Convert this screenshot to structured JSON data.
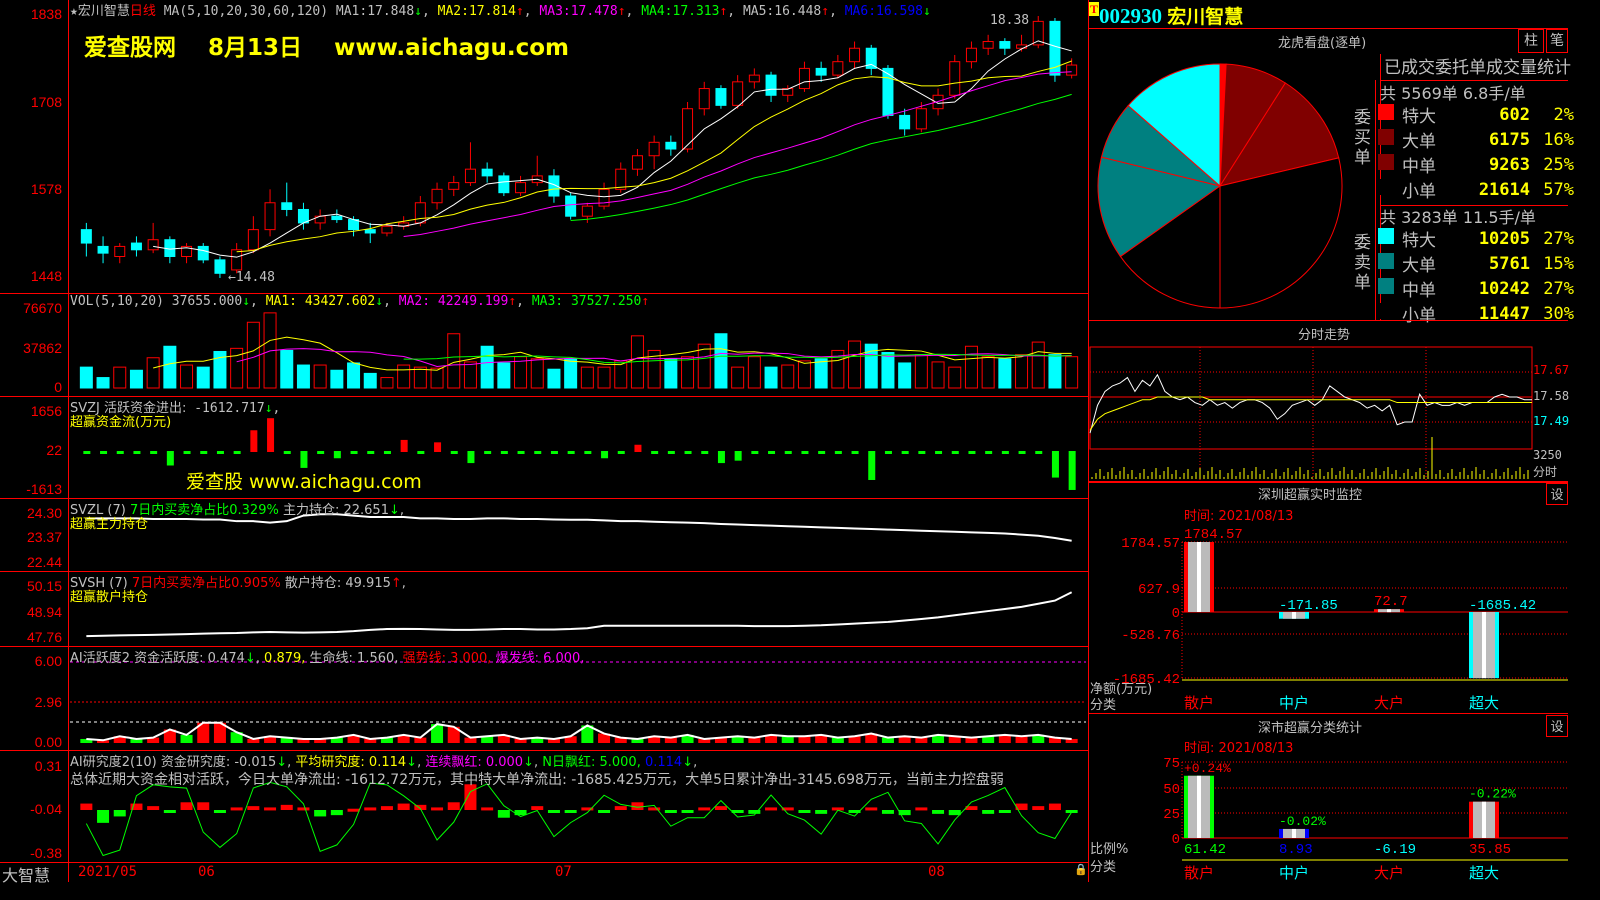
{
  "header": {
    "star": "★",
    "stock_name": "宏川智慧",
    "period": "日线",
    "ma_label": "MA(5,10,20,30,60,120)",
    "ma": [
      {
        "k": "MA1:",
        "v": "17.848",
        "arrow": "↓"
      },
      {
        "k": "MA2:",
        "v": "17.814",
        "arrow": "↑"
      },
      {
        "k": "MA3:",
        "v": "17.478",
        "arrow": "↑"
      },
      {
        "k": "MA4:",
        "v": "17.313",
        "arrow": "↑"
      },
      {
        "k": "MA5:",
        "v": "16.448",
        "arrow": "↑"
      },
      {
        "k": "MA6:",
        "v": "16.598",
        "arrow": "↓"
      }
    ],
    "watermark": "爱查股网    8月13日    www.aichagu.com",
    "high_label": "18.38",
    "low_label": "←14.48"
  },
  "price_axis": [
    "1838",
    "1708",
    "1578",
    "1448"
  ],
  "candles": [
    [
      15.2,
      15.3,
      14.8,
      15.0
    ],
    [
      14.95,
      15.1,
      14.7,
      14.85
    ],
    [
      14.8,
      15.0,
      14.7,
      14.95
    ],
    [
      15.0,
      15.1,
      14.8,
      14.9
    ],
    [
      14.9,
      15.3,
      14.85,
      15.05
    ],
    [
      15.05,
      15.1,
      14.7,
      14.8
    ],
    [
      14.8,
      15.0,
      14.7,
      14.95
    ],
    [
      14.95,
      15.0,
      14.7,
      14.75
    ],
    [
      14.75,
      14.8,
      14.48,
      14.55
    ],
    [
      14.6,
      15.0,
      14.55,
      14.9
    ],
    [
      14.9,
      15.4,
      14.85,
      15.2
    ],
    [
      15.2,
      15.8,
      15.1,
      15.6
    ],
    [
      15.6,
      15.9,
      15.4,
      15.5
    ],
    [
      15.5,
      15.6,
      15.2,
      15.3
    ],
    [
      15.3,
      15.5,
      15.2,
      15.4
    ],
    [
      15.4,
      15.5,
      15.3,
      15.35
    ],
    [
      15.35,
      15.4,
      15.1,
      15.2
    ],
    [
      15.2,
      15.3,
      15.0,
      15.15
    ],
    [
      15.15,
      15.3,
      15.1,
      15.25
    ],
    [
      15.25,
      15.4,
      15.2,
      15.3
    ],
    [
      15.3,
      15.7,
      15.25,
      15.6
    ],
    [
      15.6,
      15.9,
      15.5,
      15.8
    ],
    [
      15.8,
      16.0,
      15.7,
      15.9
    ],
    [
      15.9,
      16.5,
      15.85,
      16.1
    ],
    [
      16.1,
      16.2,
      15.9,
      16.0
    ],
    [
      16.0,
      16.05,
      15.7,
      15.75
    ],
    [
      15.75,
      16.0,
      15.7,
      15.9
    ],
    [
      15.9,
      16.3,
      15.85,
      16.0
    ],
    [
      16.0,
      16.1,
      15.6,
      15.7
    ],
    [
      15.7,
      15.75,
      15.35,
      15.4
    ],
    [
      15.4,
      15.6,
      15.3,
      15.55
    ],
    [
      15.55,
      15.9,
      15.5,
      15.8
    ],
    [
      15.8,
      16.2,
      15.75,
      16.1
    ],
    [
      16.1,
      16.4,
      16.0,
      16.3
    ],
    [
      16.3,
      16.6,
      16.1,
      16.5
    ],
    [
      16.5,
      16.6,
      16.3,
      16.4
    ],
    [
      16.4,
      17.1,
      16.35,
      17.0
    ],
    [
      17.0,
      17.4,
      16.9,
      17.3
    ],
    [
      17.3,
      17.35,
      17.0,
      17.05
    ],
    [
      17.05,
      17.5,
      17.0,
      17.4
    ],
    [
      17.4,
      17.6,
      17.3,
      17.5
    ],
    [
      17.5,
      17.55,
      17.1,
      17.2
    ],
    [
      17.2,
      17.35,
      17.1,
      17.3
    ],
    [
      17.3,
      17.7,
      17.25,
      17.6
    ],
    [
      17.6,
      17.7,
      17.4,
      17.5
    ],
    [
      17.5,
      17.8,
      17.45,
      17.7
    ],
    [
      17.7,
      18.0,
      17.6,
      17.9
    ],
    [
      17.9,
      17.95,
      17.5,
      17.6
    ],
    [
      17.6,
      17.65,
      16.85,
      16.9
    ],
    [
      16.9,
      17.0,
      16.6,
      16.7
    ],
    [
      16.7,
      17.1,
      16.65,
      17.0
    ],
    [
      17.0,
      17.3,
      16.9,
      17.2
    ],
    [
      17.2,
      17.8,
      17.15,
      17.7
    ],
    [
      17.7,
      18.0,
      17.6,
      17.9
    ],
    [
      17.9,
      18.1,
      17.8,
      18.0
    ],
    [
      18.0,
      18.05,
      17.8,
      17.9
    ],
    [
      17.9,
      18.1,
      17.85,
      17.95
    ],
    [
      17.95,
      18.38,
      17.9,
      18.3
    ],
    [
      18.3,
      18.35,
      17.4,
      17.5
    ],
    [
      17.5,
      17.75,
      17.45,
      17.65
    ]
  ],
  "volume": {
    "label": "VOL(5,10,20)",
    "value": "37655.000",
    "arrow1": "↓",
    "ma1": "MA1: 43427.602",
    "a1": "↓",
    "ma2": "MA2: 42249.199",
    "a2": "↑",
    "ma3": "MA3: 37527.250",
    "a3": "↑",
    "axis": [
      "76670",
      "37862",
      "0"
    ],
    "values": [
      20000,
      10000,
      20000,
      17000,
      29000,
      40000,
      22000,
      20000,
      35000,
      38000,
      63000,
      72000,
      36000,
      22000,
      22000,
      17000,
      24000,
      14000,
      10000,
      22000,
      20000,
      19000,
      52000,
      25000,
      40000,
      24000,
      30000,
      28000,
      18000,
      28000,
      20000,
      20000,
      26000,
      50000,
      36000,
      28000,
      30000,
      42000,
      52000,
      20000,
      30000,
      20000,
      22000,
      26000,
      28000,
      36000,
      45000,
      42000,
      34000,
      24000,
      32000,
      25000,
      20000,
      40000,
      30000,
      28000,
      32000,
      44000,
      32000,
      30000
    ]
  },
  "svzj": {
    "label": "SVZJ  活跃资金进出:",
    "value": "-1612.717",
    "arrow": "↓",
    "sub": "超赢资金流(万元)",
    "axis": [
      "1656",
      "22",
      "-1613"
    ],
    "watermark": "爱查股 www.aichagu.com",
    "values": [
      -30,
      -40,
      -60,
      -60,
      -80,
      -600,
      -40,
      -60,
      -40,
      -40,
      900,
      1400,
      -40,
      -700,
      -60,
      -300,
      -80,
      -60,
      -40,
      500,
      -40,
      400,
      -60,
      -500,
      -60,
      -60,
      -40,
      -60,
      -60,
      -60,
      -40,
      -300,
      -40,
      300,
      -40,
      -60,
      -60,
      -80,
      -500,
      -400,
      -60,
      -60,
      -60,
      -40,
      -60,
      -60,
      -60,
      -1200,
      -60,
      -60,
      -40,
      -60,
      -60,
      -60,
      -40,
      -60,
      -60,
      -60,
      -1100,
      -1613
    ]
  },
  "svzl": {
    "label": "SVZL (7)",
    "ratio": "7日内买卖净占比0.329%",
    "hold": "主力持仓: 22.651",
    "arrow": "↓",
    "sub": "超赢主力持仓",
    "axis": [
      "24.30",
      "23.37",
      "22.44"
    ],
    "values": [
      24.0,
      24.0,
      24.0,
      24.0,
      23.98,
      23.98,
      23.98,
      23.96,
      23.96,
      23.9,
      23.9,
      23.85,
      23.9,
      24.1,
      24.15,
      24.15,
      24.1,
      24.05,
      24.05,
      24.05,
      24.0,
      24.0,
      23.98,
      23.98,
      24.0,
      24.0,
      23.98,
      23.98,
      23.96,
      23.95,
      23.95,
      23.93,
      23.9,
      23.9,
      23.88,
      23.86,
      23.85,
      23.83,
      23.8,
      23.78,
      23.76,
      23.74,
      23.72,
      23.7,
      23.68,
      23.66,
      23.64,
      23.62,
      23.6,
      23.58,
      23.56,
      23.54,
      23.52,
      23.5,
      23.48,
      23.46,
      23.42,
      23.38,
      23.3,
      23.2
    ]
  },
  "svsh": {
    "label": "SVSH (7)",
    "ratio": "7日内买卖净占比0.905%",
    "hold": "散户持仓: 49.915",
    "arrow": "↑",
    "sub": "超赢散户持仓",
    "axis": [
      "50.15",
      "48.94",
      "47.76"
    ],
    "values": [
      47.8,
      47.82,
      47.84,
      47.85,
      47.86,
      47.88,
      47.9,
      47.92,
      47.94,
      47.95,
      47.98,
      48.0,
      47.98,
      47.97,
      47.98,
      48.0,
      48.04,
      48.1,
      48.14,
      48.15,
      48.14,
      48.12,
      48.1,
      48.1,
      48.12,
      48.14,
      48.14,
      48.12,
      48.12,
      48.14,
      48.18,
      48.3,
      48.3,
      48.3,
      48.3,
      48.3,
      48.3,
      48.3,
      48.3,
      48.3,
      48.28,
      48.28,
      48.28,
      48.3,
      48.32,
      48.36,
      48.4,
      48.44,
      48.48,
      48.55,
      48.62,
      48.7,
      48.8,
      48.9,
      49.0,
      49.1,
      49.2,
      49.35,
      49.5,
      49.9
    ]
  },
  "ai_active": {
    "label": "AI活跃度2",
    "v1": "资金活跃度: 0.474",
    "a1": "↓",
    "v2": "0.879,",
    "v3": "生命线: 1.560,",
    "v4": "强势线: 3.000,",
    "v5": "爆发线: 6.000,",
    "axis": [
      "6.00",
      "2.96",
      "0.00"
    ],
    "values": [
      0.3,
      0.2,
      0.5,
      0.3,
      0.4,
      1.0,
      0.6,
      1.5,
      1.5,
      0.8,
      0.3,
      0.5,
      0.4,
      0.3,
      0.3,
      0.4,
      0.6,
      0.3,
      0.4,
      0.6,
      0.4,
      1.4,
      1.2,
      0.4,
      0.5,
      0.6,
      0.3,
      0.4,
      0.3,
      0.5,
      1.3,
      0.7,
      0.4,
      0.3,
      0.5,
      0.4,
      0.6,
      0.3,
      0.4,
      0.5,
      0.4,
      0.6,
      0.5,
      0.5,
      0.6,
      0.4,
      0.5,
      0.7,
      0.4,
      0.5,
      0.4,
      0.6,
      0.5,
      0.4,
      0.5,
      0.6,
      0.5,
      0.6,
      0.4,
      0.3
    ]
  },
  "ai_research": {
    "label": "AI研究度2(10)",
    "v1": "资金研究度: -0.015",
    "a1": "↓",
    "v2": "平均研究度: 0.114",
    "a2": "↓",
    "v3": "连续飘红: 0.000",
    "a3": "↓",
    "v4": "N日飘红: 5.000,",
    "v5": "0.114",
    "a5": "↓",
    "summary": "总体近期大资金相对活跃，今日大单净流出: -1612.72万元，其中特大单净流出: -1685.425万元，大单5日累计净出-3145.698万元，当前主力控盘弱",
    "axis": [
      "0.31",
      "-0.04",
      "-0.38"
    ],
    "values": [
      0.05,
      -0.1,
      -0.05,
      0.05,
      0.03,
      -0.01,
      0.06,
      0.06,
      -0.02,
      0.02,
      0.03,
      0.02,
      0.04,
      0.02,
      -0.05,
      -0.04,
      0.01,
      0.02,
      0.03,
      0.05,
      0.04,
      0.02,
      0.06,
      0.2,
      0.02,
      -0.06,
      -0.04,
      0.03,
      -0.02,
      -0.02,
      0.02,
      -0.01,
      0.03,
      0.06,
      0.02,
      -0.02,
      -0.02,
      0.02,
      0.03,
      -0.02,
      -0.03,
      0.02,
      0.02,
      -0.02,
      -0.03,
      0.02,
      -0.02,
      0.02,
      -0.03,
      -0.04,
      0.02,
      -0.03,
      -0.04,
      0.03,
      -0.03,
      -0.02,
      0.05,
      0.03,
      0.05,
      -0.02
    ]
  },
  "bottom_axis": {
    "brand": "大智慧",
    "labels": [
      "2021/05",
      "06",
      "07",
      "08"
    ]
  },
  "right": {
    "code": "002930",
    "name": "宏川智慧",
    "t_badge": "T",
    "pie_title": "龙虎看盘(逐单)",
    "btn_zhu": "柱",
    "btn_bi": "笔",
    "stats_title": "已成交委托单成交量统计",
    "buy": {
      "side": "委买单",
      "summary": "共 5569单 6.8手/单",
      "rows": [
        {
          "k": "特大",
          "v": "602",
          "p": "2%",
          "color": "#ff0000"
        },
        {
          "k": "大单",
          "v": "6175",
          "p": "16%",
          "color": "#800000"
        },
        {
          "k": "中单",
          "v": "9263",
          "p": "25%",
          "color": "#800000"
        },
        {
          "k": "小单",
          "v": "21614",
          "p": "57%",
          "color": "#000000"
        }
      ]
    },
    "sell": {
      "side": "委卖单",
      "summary": "共 3283单 11.5手/单",
      "rows": [
        {
          "k": "特大",
          "v": "10205",
          "p": "27%",
          "color": "#00ffff"
        },
        {
          "k": "大单",
          "v": "5761",
          "p": "15%",
          "color": "#008080"
        },
        {
          "k": "中单",
          "v": "10242",
          "p": "27%",
          "color": "#008080"
        },
        {
          "k": "小单",
          "v": "11447",
          "p": "30%",
          "color": "#000000"
        }
      ]
    },
    "intraday": {
      "title": "分时走势",
      "axis": [
        "17.67",
        "17.58",
        "17.49",
        "3250",
        "分时"
      ],
      "price": [
        17.45,
        17.55,
        17.6,
        17.62,
        17.63,
        17.65,
        17.6,
        17.64,
        17.62,
        17.66,
        17.6,
        17.58,
        17.57,
        17.58,
        17.56,
        17.55,
        17.57,
        17.55,
        17.56,
        17.54,
        17.56,
        17.57,
        17.57,
        17.56,
        17.54,
        17.5,
        17.52,
        17.55,
        17.56,
        17.57,
        17.55,
        17.57,
        17.62,
        17.6,
        17.58,
        17.57,
        17.56,
        17.54,
        17.55,
        17.53,
        17.55,
        17.48,
        17.49,
        17.49,
        17.59,
        17.55,
        17.56,
        17.55,
        17.55,
        17.56,
        17.55,
        17.56,
        17.56,
        17.56,
        17.58,
        17.59,
        17.58,
        17.58,
        17.57,
        17.57
      ],
      "avg": [
        17.46,
        17.5,
        17.52,
        17.53,
        17.54,
        17.55,
        17.56,
        17.57,
        17.57,
        17.58,
        17.58,
        17.58,
        17.58,
        17.58,
        17.58,
        17.58,
        17.57,
        17.57,
        17.57,
        17.57,
        17.57,
        17.57,
        17.57,
        17.57,
        17.57,
        17.57,
        17.57,
        17.57,
        17.57,
        17.57,
        17.57,
        17.57,
        17.57,
        17.57,
        17.57,
        17.57,
        17.57,
        17.57,
        17.57,
        17.57,
        17.57,
        17.56,
        17.56,
        17.56,
        17.56,
        17.56,
        17.56,
        17.56,
        17.56,
        17.56,
        17.56,
        17.56,
        17.56,
        17.56,
        17.56,
        17.56,
        17.56,
        17.56,
        17.56,
        17.56
      ]
    },
    "monitor": {
      "title": "深圳超赢实时监控",
      "time": "时间: 2021/08/13",
      "btn": "设",
      "axis": [
        "1784.57",
        "627.9",
        "0",
        "-528.76",
        "-1685.42"
      ],
      "ylabel": "净额(万元)",
      "xlabel": "分类",
      "cats": [
        "散户",
        "中户",
        "大户",
        "超大"
      ],
      "cat_colors": [
        "#ff0000",
        "#00ffff",
        "#ff0000",
        "#00ffff"
      ],
      "values": [
        1784.57,
        -171.85,
        72.7,
        -1685.42
      ],
      "labels": [
        "1784.57",
        "-171.85",
        "72.7",
        "-1685.42"
      ]
    },
    "classify": {
      "title": "深市超赢分类统计",
      "time": "时间: 2021/08/13",
      "btn": "设",
      "axis": [
        "75",
        "50",
        "25",
        "0"
      ],
      "ylabel": "比例%",
      "xlabel": "分类",
      "cats": [
        "散户",
        "中户",
        "大户",
        "超大"
      ],
      "cat_colors": [
        "#ff0000",
        "#00ffff",
        "#ff0000",
        "#00ffff"
      ],
      "values": [
        61.42,
        8.93,
        -6.19,
        35.85
      ],
      "labels": [
        "61.42",
        "8.93",
        "-6.19",
        "35.85"
      ],
      "label_colors": [
        "#00ff00",
        "#0000ff",
        "#00ffff",
        "#ff0000"
      ],
      "changes": [
        "+0.24%",
        "-0.02%",
        "",
        "-0.22%"
      ],
      "change_colors": [
        "#ff0000",
        "#00ff00",
        "",
        "#00ff00"
      ],
      "bar_colors": [
        "#00ff00",
        "#0000ff",
        "",
        "#ff0000"
      ]
    }
  }
}
